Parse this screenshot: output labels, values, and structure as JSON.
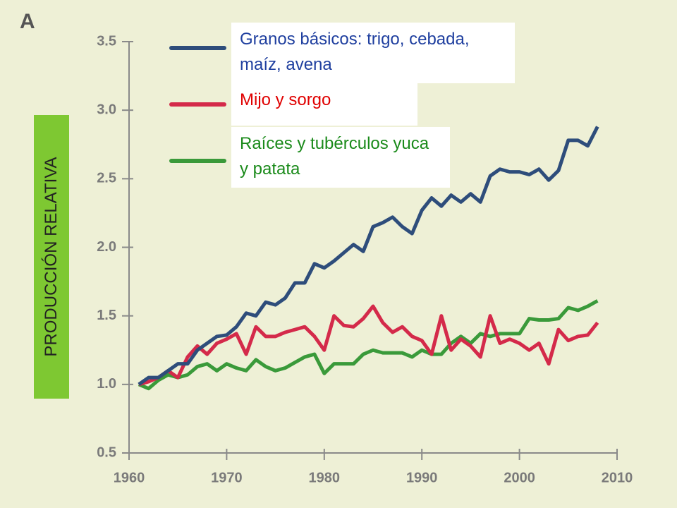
{
  "chart_data": {
    "type": "line",
    "panel_label": "A",
    "ylabel": "PRODUCCIÓN RELATIVA",
    "x": [
      1961,
      1962,
      1963,
      1964,
      1965,
      1966,
      1967,
      1968,
      1969,
      1970,
      1971,
      1972,
      1973,
      1974,
      1975,
      1976,
      1977,
      1978,
      1979,
      1980,
      1981,
      1982,
      1983,
      1984,
      1985,
      1986,
      1987,
      1988,
      1989,
      1990,
      1991,
      1992,
      1993,
      1994,
      1995,
      1996,
      1997,
      1998,
      1999,
      2000,
      2001,
      2002,
      2003,
      2004,
      2005,
      2006,
      2007,
      2008
    ],
    "xlim": [
      1960,
      2010
    ],
    "xticks": [
      1960,
      1970,
      1980,
      1990,
      2000,
      2010
    ],
    "ylim": [
      0.5,
      3.5
    ],
    "yticks": [
      0.5,
      {
        "value": 1,
        "label": "1.0"
      },
      1.5,
      {
        "value": 2,
        "label": "2.0"
      },
      2.5,
      {
        "value": 3,
        "label": "3.0"
      },
      3.5
    ],
    "series": [
      {
        "name": "Granos básicos: trigo, cebada, maíz, avena",
        "color": "#2e4d7b",
        "legend_color": "#1f3f9f",
        "values": [
          1.0,
          1.05,
          1.05,
          1.1,
          1.15,
          1.15,
          1.25,
          1.3,
          1.35,
          1.36,
          1.42,
          1.52,
          1.5,
          1.6,
          1.58,
          1.63,
          1.74,
          1.74,
          1.88,
          1.85,
          1.9,
          1.96,
          2.02,
          1.97,
          2.15,
          2.18,
          2.22,
          2.15,
          2.1,
          2.27,
          2.36,
          2.3,
          2.38,
          2.33,
          2.39,
          2.33,
          2.52,
          2.57,
          2.55,
          2.55,
          2.53,
          2.57,
          2.49,
          2.56,
          2.78,
          2.78,
          2.74,
          2.88
        ]
      },
      {
        "name": "Mijo y sorgo",
        "color": "#d42a4a",
        "legend_color": "#e00000",
        "values": [
          1.0,
          1.02,
          1.05,
          1.1,
          1.05,
          1.2,
          1.28,
          1.22,
          1.3,
          1.33,
          1.37,
          1.22,
          1.42,
          1.35,
          1.35,
          1.38,
          1.4,
          1.42,
          1.35,
          1.25,
          1.5,
          1.43,
          1.42,
          1.48,
          1.57,
          1.45,
          1.38,
          1.42,
          1.35,
          1.32,
          1.22,
          1.5,
          1.25,
          1.33,
          1.28,
          1.2,
          1.5,
          1.3,
          1.33,
          1.3,
          1.25,
          1.3,
          1.15,
          1.4,
          1.32,
          1.35,
          1.36,
          1.45
        ]
      },
      {
        "name": "Raíces y tubérculos yuca y patata",
        "color": "#3a9a3a",
        "legend_color": "#1a8a1a",
        "values": [
          1.0,
          0.97,
          1.03,
          1.07,
          1.05,
          1.07,
          1.13,
          1.15,
          1.1,
          1.15,
          1.12,
          1.1,
          1.18,
          1.13,
          1.1,
          1.12,
          1.16,
          1.2,
          1.22,
          1.08,
          1.15,
          1.15,
          1.15,
          1.22,
          1.25,
          1.23,
          1.23,
          1.23,
          1.2,
          1.25,
          1.22,
          1.22,
          1.3,
          1.35,
          1.3,
          1.37,
          1.35,
          1.37,
          1.37,
          1.37,
          1.48,
          1.47,
          1.47,
          1.48,
          1.56,
          1.54,
          1.57,
          1.61
        ]
      }
    ]
  }
}
